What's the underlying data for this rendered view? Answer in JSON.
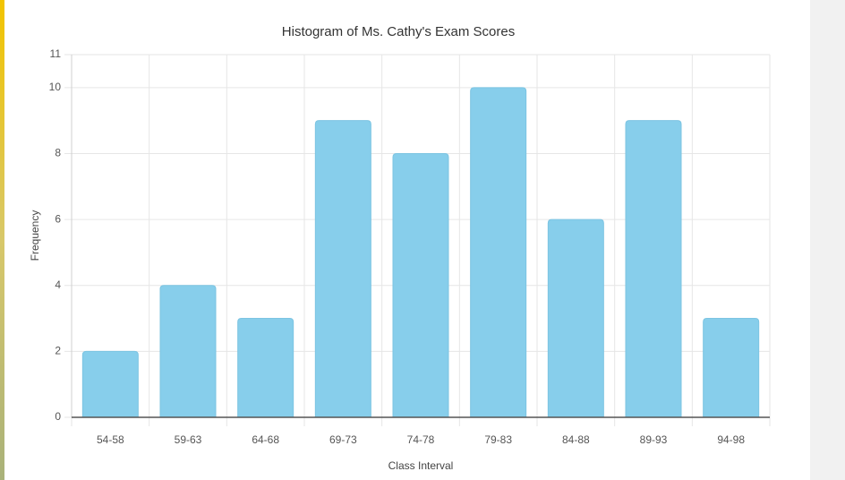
{
  "chart_data": {
    "type": "bar",
    "title": "Histogram of Ms. Cathy's Exam Scores",
    "x_label": "Class Interval",
    "y_label": "Frequency",
    "categories": [
      "54-58",
      "59-63",
      "64-68",
      "69-73",
      "74-78",
      "79-83",
      "84-88",
      "89-93",
      "94-98"
    ],
    "values": [
      2,
      4,
      3,
      9,
      8,
      10,
      6,
      9,
      3
    ],
    "color": "#87ceeb",
    "ylim": [
      0,
      11
    ],
    "yticks": [
      0,
      2,
      4,
      6,
      8,
      10,
      11
    ],
    "grid": true
  }
}
